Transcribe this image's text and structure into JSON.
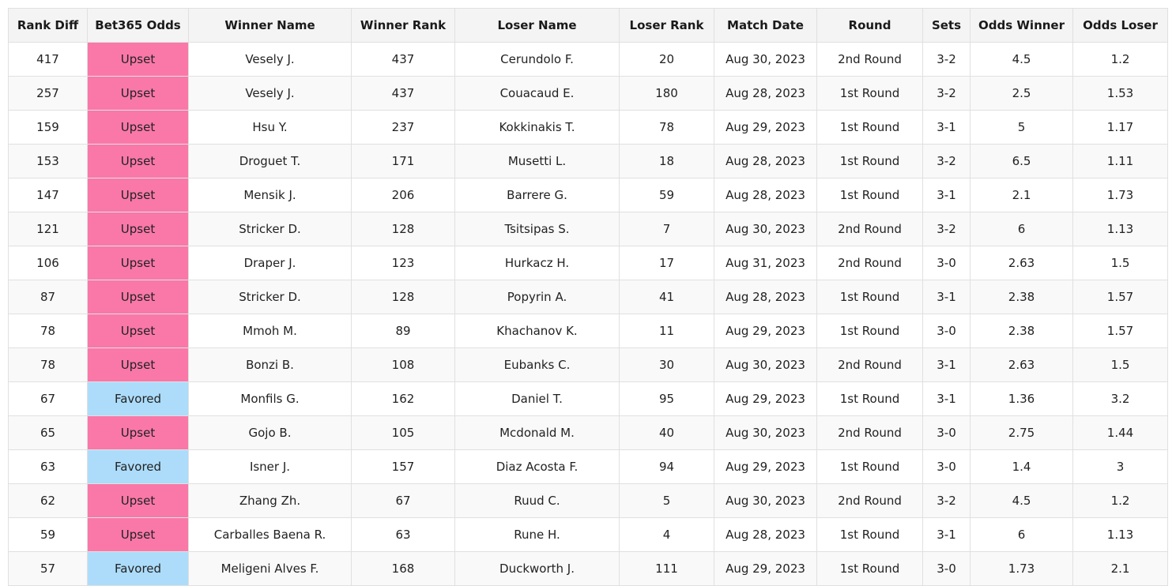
{
  "colors": {
    "upset": "#f978a8",
    "favored": "#acdcfa"
  },
  "table": {
    "columns": [
      "Rank Diff",
      "Bet365 Odds",
      "Winner Name",
      "Winner Rank",
      "Loser Name",
      "Loser Rank",
      "Match Date",
      "Round",
      "Sets",
      "Odds Winner",
      "Odds Loser"
    ],
    "rows": [
      [
        "417",
        "Upset",
        "Vesely J.",
        "437",
        "Cerundolo F.",
        "20",
        "Aug 30, 2023",
        "2nd Round",
        "3-2",
        "4.5",
        "1.2"
      ],
      [
        "257",
        "Upset",
        "Vesely J.",
        "437",
        "Couacaud E.",
        "180",
        "Aug 28, 2023",
        "1st Round",
        "3-2",
        "2.5",
        "1.53"
      ],
      [
        "159",
        "Upset",
        "Hsu Y.",
        "237",
        "Kokkinakis T.",
        "78",
        "Aug 29, 2023",
        "1st Round",
        "3-1",
        "5",
        "1.17"
      ],
      [
        "153",
        "Upset",
        "Droguet T.",
        "171",
        "Musetti L.",
        "18",
        "Aug 28, 2023",
        "1st Round",
        "3-2",
        "6.5",
        "1.11"
      ],
      [
        "147",
        "Upset",
        "Mensik J.",
        "206",
        "Barrere G.",
        "59",
        "Aug 28, 2023",
        "1st Round",
        "3-1",
        "2.1",
        "1.73"
      ],
      [
        "121",
        "Upset",
        "Stricker D.",
        "128",
        "Tsitsipas S.",
        "7",
        "Aug 30, 2023",
        "2nd Round",
        "3-2",
        "6",
        "1.13"
      ],
      [
        "106",
        "Upset",
        "Draper J.",
        "123",
        "Hurkacz H.",
        "17",
        "Aug 31, 2023",
        "2nd Round",
        "3-0",
        "2.63",
        "1.5"
      ],
      [
        "87",
        "Upset",
        "Stricker D.",
        "128",
        "Popyrin A.",
        "41",
        "Aug 28, 2023",
        "1st Round",
        "3-1",
        "2.38",
        "1.57"
      ],
      [
        "78",
        "Upset",
        "Mmoh M.",
        "89",
        "Khachanov K.",
        "11",
        "Aug 29, 2023",
        "1st Round",
        "3-0",
        "2.38",
        "1.57"
      ],
      [
        "78",
        "Upset",
        "Bonzi B.",
        "108",
        "Eubanks C.",
        "30",
        "Aug 30, 2023",
        "2nd Round",
        "3-1",
        "2.63",
        "1.5"
      ],
      [
        "67",
        "Favored",
        "Monfils G.",
        "162",
        "Daniel T.",
        "95",
        "Aug 29, 2023",
        "1st Round",
        "3-1",
        "1.36",
        "3.2"
      ],
      [
        "65",
        "Upset",
        "Gojo B.",
        "105",
        "Mcdonald M.",
        "40",
        "Aug 30, 2023",
        "2nd Round",
        "3-0",
        "2.75",
        "1.44"
      ],
      [
        "63",
        "Favored",
        "Isner J.",
        "157",
        "Diaz Acosta F.",
        "94",
        "Aug 29, 2023",
        "1st Round",
        "3-0",
        "1.4",
        "3"
      ],
      [
        "62",
        "Upset",
        "Zhang Zh.",
        "67",
        "Ruud C.",
        "5",
        "Aug 30, 2023",
        "2nd Round",
        "3-2",
        "4.5",
        "1.2"
      ],
      [
        "59",
        "Upset",
        "Carballes Baena R.",
        "63",
        "Rune H.",
        "4",
        "Aug 28, 2023",
        "1st Round",
        "3-1",
        "6",
        "1.13"
      ],
      [
        "57",
        "Favored",
        "Meligeni Alves F.",
        "168",
        "Duckworth J.",
        "111",
        "Aug 29, 2023",
        "1st Round",
        "3-0",
        "1.73",
        "2.1"
      ]
    ]
  }
}
